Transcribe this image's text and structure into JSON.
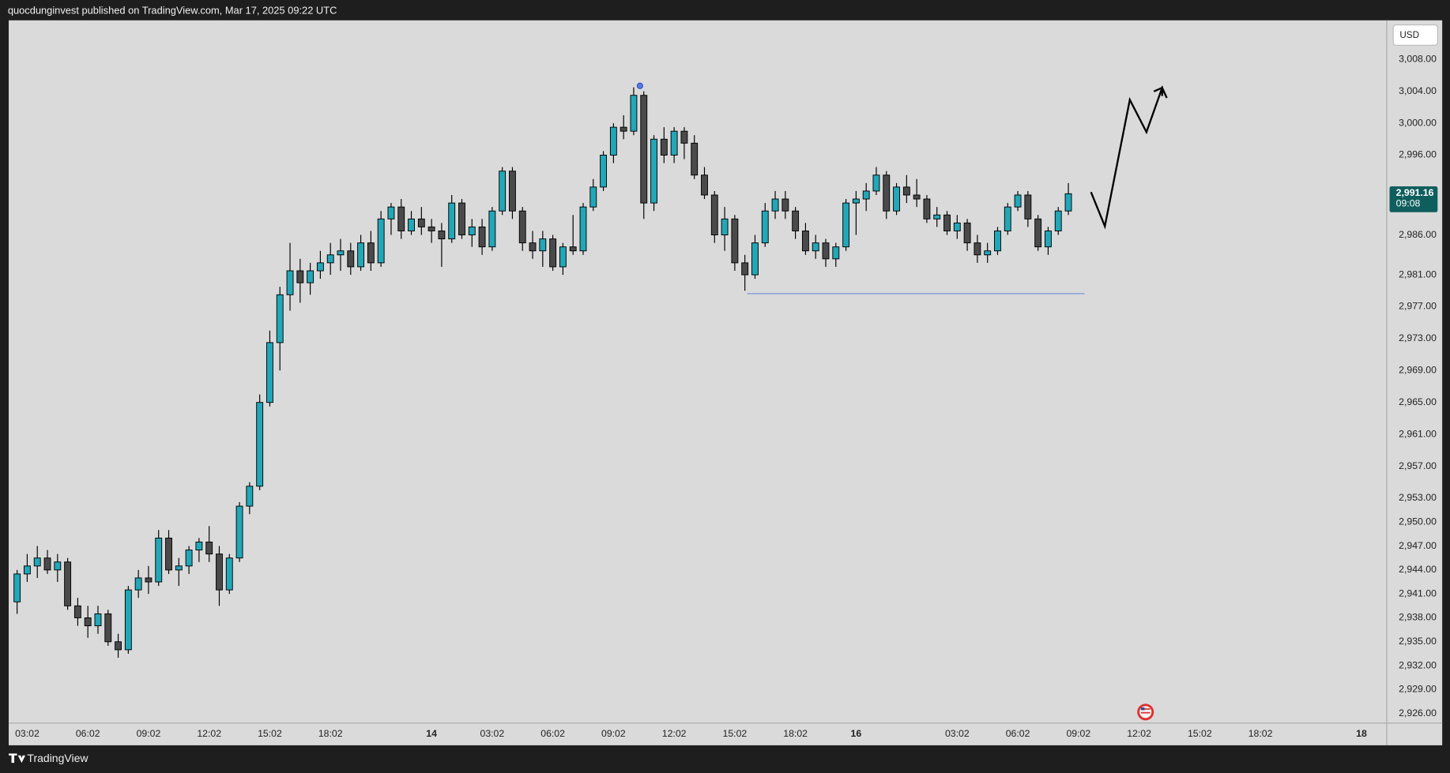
{
  "header": "quocdunginvest published on TradingView.com, Mar 17, 2025 09:22 UTC",
  "footer": "TradingView",
  "chart_data": {
    "type": "candlestick",
    "currency": "USD",
    "up_color": "#22a7b8",
    "down_color": "#4a4a4a",
    "grid": false,
    "xlim": [
      -1.83,
      134.5
    ],
    "ylim": [
      2924.8,
      3012.9
    ],
    "xticks": [
      {
        "value": 0,
        "label": "03:02"
      },
      {
        "value": 6,
        "label": "06:02"
      },
      {
        "value": 12,
        "label": "09:02"
      },
      {
        "value": 18,
        "label": "12:02"
      },
      {
        "value": 24,
        "label": "15:02"
      },
      {
        "value": 30,
        "label": "18:02"
      },
      {
        "value": 40,
        "label": "14"
      },
      {
        "value": 46,
        "label": "03:02"
      },
      {
        "value": 52,
        "label": "06:02"
      },
      {
        "value": 58,
        "label": "09:02"
      },
      {
        "value": 64,
        "label": "12:02"
      },
      {
        "value": 70,
        "label": "15:02"
      },
      {
        "value": 76,
        "label": "18:02"
      },
      {
        "value": 82,
        "label": "16"
      },
      {
        "value": 92,
        "label": "03:02"
      },
      {
        "value": 98,
        "label": "06:02"
      },
      {
        "value": 104,
        "label": "09:02"
      },
      {
        "value": 110,
        "label": "12:02"
      },
      {
        "value": 116,
        "label": "15:02"
      },
      {
        "value": 122,
        "label": "18:02"
      },
      {
        "value": 132,
        "label": "18"
      }
    ],
    "yticks": [
      {
        "value": 3008,
        "label": "3,008.00"
      },
      {
        "value": 3004,
        "label": "3,004.00"
      },
      {
        "value": 3000,
        "label": "3,000.00"
      },
      {
        "value": 2996,
        "label": "2,996.00"
      },
      {
        "value": 2986,
        "label": "2,986.00"
      },
      {
        "value": 2981,
        "label": "2,981.00"
      },
      {
        "value": 2977,
        "label": "2,977.00"
      },
      {
        "value": 2973,
        "label": "2,973.00"
      },
      {
        "value": 2969,
        "label": "2,969.00"
      },
      {
        "value": 2965,
        "label": "2,965.00"
      },
      {
        "value": 2961,
        "label": "2,961.00"
      },
      {
        "value": 2957,
        "label": "2,957.00"
      },
      {
        "value": 2953,
        "label": "2,953.00"
      },
      {
        "value": 2950,
        "label": "2,950.00"
      },
      {
        "value": 2947,
        "label": "2,947.00"
      },
      {
        "value": 2944,
        "label": "2,944.00"
      },
      {
        "value": 2941,
        "label": "2,941.00"
      },
      {
        "value": 2938,
        "label": "2,938.00"
      },
      {
        "value": 2935,
        "label": "2,935.00"
      },
      {
        "value": 2932,
        "label": "2,932.00"
      },
      {
        "value": 2929,
        "label": "2,929.00"
      },
      {
        "value": 2926,
        "label": "2,926.00"
      }
    ],
    "last_price": {
      "value": 2991.16,
      "label": "2,991.16"
    },
    "countdown": "09:08",
    "x": [
      -1,
      0,
      1,
      2,
      3,
      4,
      5,
      6,
      7,
      8,
      9,
      10,
      11,
      12,
      13,
      14,
      15,
      16,
      17,
      18,
      19,
      20,
      21,
      22,
      23,
      24,
      25,
      26,
      27,
      28,
      29,
      30,
      31,
      32,
      33,
      34,
      35,
      36,
      37,
      38,
      39,
      40,
      41,
      42,
      43,
      44,
      45,
      46,
      47,
      48,
      49,
      50,
      51,
      52,
      53,
      54,
      55,
      56,
      57,
      58,
      59,
      60,
      61,
      62,
      63,
      64,
      65,
      66,
      67,
      68,
      69,
      70,
      71,
      72,
      73,
      74,
      75,
      76,
      77,
      78,
      79,
      80,
      81,
      82,
      83,
      84,
      85,
      86,
      87,
      88,
      89,
      90,
      91,
      92,
      93,
      94,
      95,
      96,
      97,
      98,
      99,
      100,
      101,
      102,
      103
    ],
    "open": [
      2940,
      2943.5,
      2944.5,
      2945.5,
      2944,
      2945,
      2939.5,
      2938,
      2937,
      2938.5,
      2935,
      2934,
      2941.5,
      2943,
      2942.5,
      2948,
      2944,
      2944.5,
      2946.5,
      2947.5,
      2946,
      2941.5,
      2945.5,
      2952,
      2954.5,
      2965,
      2972.5,
      2978.5,
      2981.5,
      2980,
      2981.5,
      2982.5,
      2983.5,
      2984,
      2982,
      2985,
      2982.5,
      2988,
      2989.5,
      2986.5,
      2988,
      2987,
      2986.5,
      2985.5,
      2990,
      2986,
      2987,
      2984.5,
      2989,
      2994,
      2989,
      2985,
      2984,
      2985.5,
      2982,
      2984.5,
      2984,
      2989.5,
      2992,
      2996,
      2999.5,
      2999,
      3003.5,
      2990,
      2998,
      2996,
      2999,
      2997.5,
      2993.5,
      2991,
      2986,
      2988,
      2982.5,
      2981,
      2985,
      2989,
      2990.5,
      2989,
      2986.5,
      2984,
      2985,
      2983,
      2984.5,
      2990,
      2990.5,
      2991.5,
      2993.5,
      2989,
      2992,
      2991,
      2990.5,
      2988,
      2988.5,
      2986.5,
      2987.5,
      2985,
      2983.5,
      2984,
      2986.5,
      2989.5,
      2991,
      2988,
      2984.5,
      2986.5,
      2989
    ],
    "high": [
      2944,
      2946,
      2947,
      2946.5,
      2946,
      2945.5,
      2940.5,
      2939.5,
      2939.5,
      2939,
      2936,
      2942,
      2944,
      2944.5,
      2949,
      2949,
      2945.5,
      2947,
      2948,
      2949.5,
      2947,
      2946,
      2952.5,
      2955,
      2966,
      2974,
      2979.5,
      2985,
      2983,
      2982.5,
      2984,
      2985,
      2985.5,
      2985,
      2986,
      2986.5,
      2989,
      2990,
      2990.5,
      2989,
      2989.5,
      2988,
      2987.5,
      2991,
      2990.5,
      2988,
      2988,
      2989.5,
      2994.5,
      2994.5,
      2989.5,
      2986.5,
      2986.5,
      2986,
      2985,
      2988.5,
      2990,
      2993,
      2996.5,
      3000,
      3001,
      3004.5,
      3004,
      2998.5,
      2999.5,
      2999.5,
      2999.5,
      2998.5,
      2994.5,
      2991.5,
      2989.5,
      2988.5,
      2983.5,
      2986,
      2990,
      2991.5,
      2991.5,
      2989.5,
      2987.5,
      2986,
      2985.5,
      2985,
      2990.5,
      2991.5,
      2992.5,
      2994.5,
      2994,
      2992.5,
      2993.5,
      2993,
      2991,
      2989.5,
      2989,
      2988.5,
      2988,
      2986,
      2985,
      2987,
      2990,
      2991.5,
      2991.5,
      2988.5,
      2987,
      2989.5,
      2992.5
    ],
    "low": [
      2938.5,
      2942.5,
      2943,
      2943.5,
      2942.5,
      2939,
      2937,
      2935.5,
      2936,
      2934.5,
      2933,
      2933.5,
      2940.5,
      2941,
      2942,
      2943.5,
      2942,
      2943.5,
      2945,
      2945,
      2939.5,
      2941,
      2945,
      2951,
      2954,
      2964.5,
      2969,
      2976.5,
      2977.5,
      2978.5,
      2980.5,
      2981,
      2981.5,
      2981,
      2981.5,
      2981.5,
      2982,
      2986,
      2985.5,
      2986,
      2986,
      2985,
      2982,
      2985,
      2985.5,
      2984.5,
      2983.5,
      2984,
      2988.5,
      2988,
      2984,
      2983,
      2982,
      2981.5,
      2981,
      2983.5,
      2983.5,
      2989,
      2991.5,
      2995,
      2998,
      2998.5,
      2988,
      2989,
      2995,
      2995,
      2995.5,
      2993,
      2990.5,
      2985,
      2984,
      2981.5,
      2979,
      2980.5,
      2984.5,
      2988,
      2988,
      2985.5,
      2983.5,
      2983,
      2982,
      2982,
      2984,
      2986,
      2989,
      2991,
      2988,
      2988.5,
      2990,
      2989.5,
      2987.5,
      2987,
      2986,
      2985.5,
      2984,
      2982.5,
      2982.5,
      2983.5,
      2986,
      2989,
      2987,
      2984,
      2983.5,
      2986,
      2988.5
    ],
    "close": [
      2943.5,
      2944.5,
      2945.5,
      2944,
      2945,
      2939.5,
      2938,
      2937,
      2938.5,
      2935,
      2934,
      2941.5,
      2943,
      2942.5,
      2948,
      2944,
      2944.5,
      2946.5,
      2947.5,
      2946,
      2941.5,
      2945.5,
      2952,
      2954.5,
      2965,
      2972.5,
      2978.5,
      2981.5,
      2980,
      2981.5,
      2982.5,
      2983.5,
      2984,
      2982,
      2985,
      2982.5,
      2988,
      2989.5,
      2986.5,
      2988,
      2987,
      2986.5,
      2985.5,
      2990,
      2986,
      2987,
      2984.5,
      2989,
      2994,
      2989,
      2985,
      2984,
      2985.5,
      2982,
      2984.5,
      2984,
      2989.5,
      2992,
      2996,
      2999.5,
      2999,
      3003.5,
      2990,
      2998,
      2996,
      2999,
      2997.5,
      2993.5,
      2991,
      2986,
      2988,
      2982.5,
      2981,
      2985,
      2989,
      2990.5,
      2989,
      2986.5,
      2984,
      2985,
      2983,
      2984.5,
      2990,
      2990.5,
      2991.5,
      2993.5,
      2989,
      2992,
      2991,
      2990.5,
      2988,
      2988.5,
      2986.5,
      2987.5,
      2985,
      2983.5,
      2984,
      2986.5,
      2989.5,
      2991,
      2988,
      2984.5,
      2986.5,
      2989,
      2991.16
    ]
  }
}
